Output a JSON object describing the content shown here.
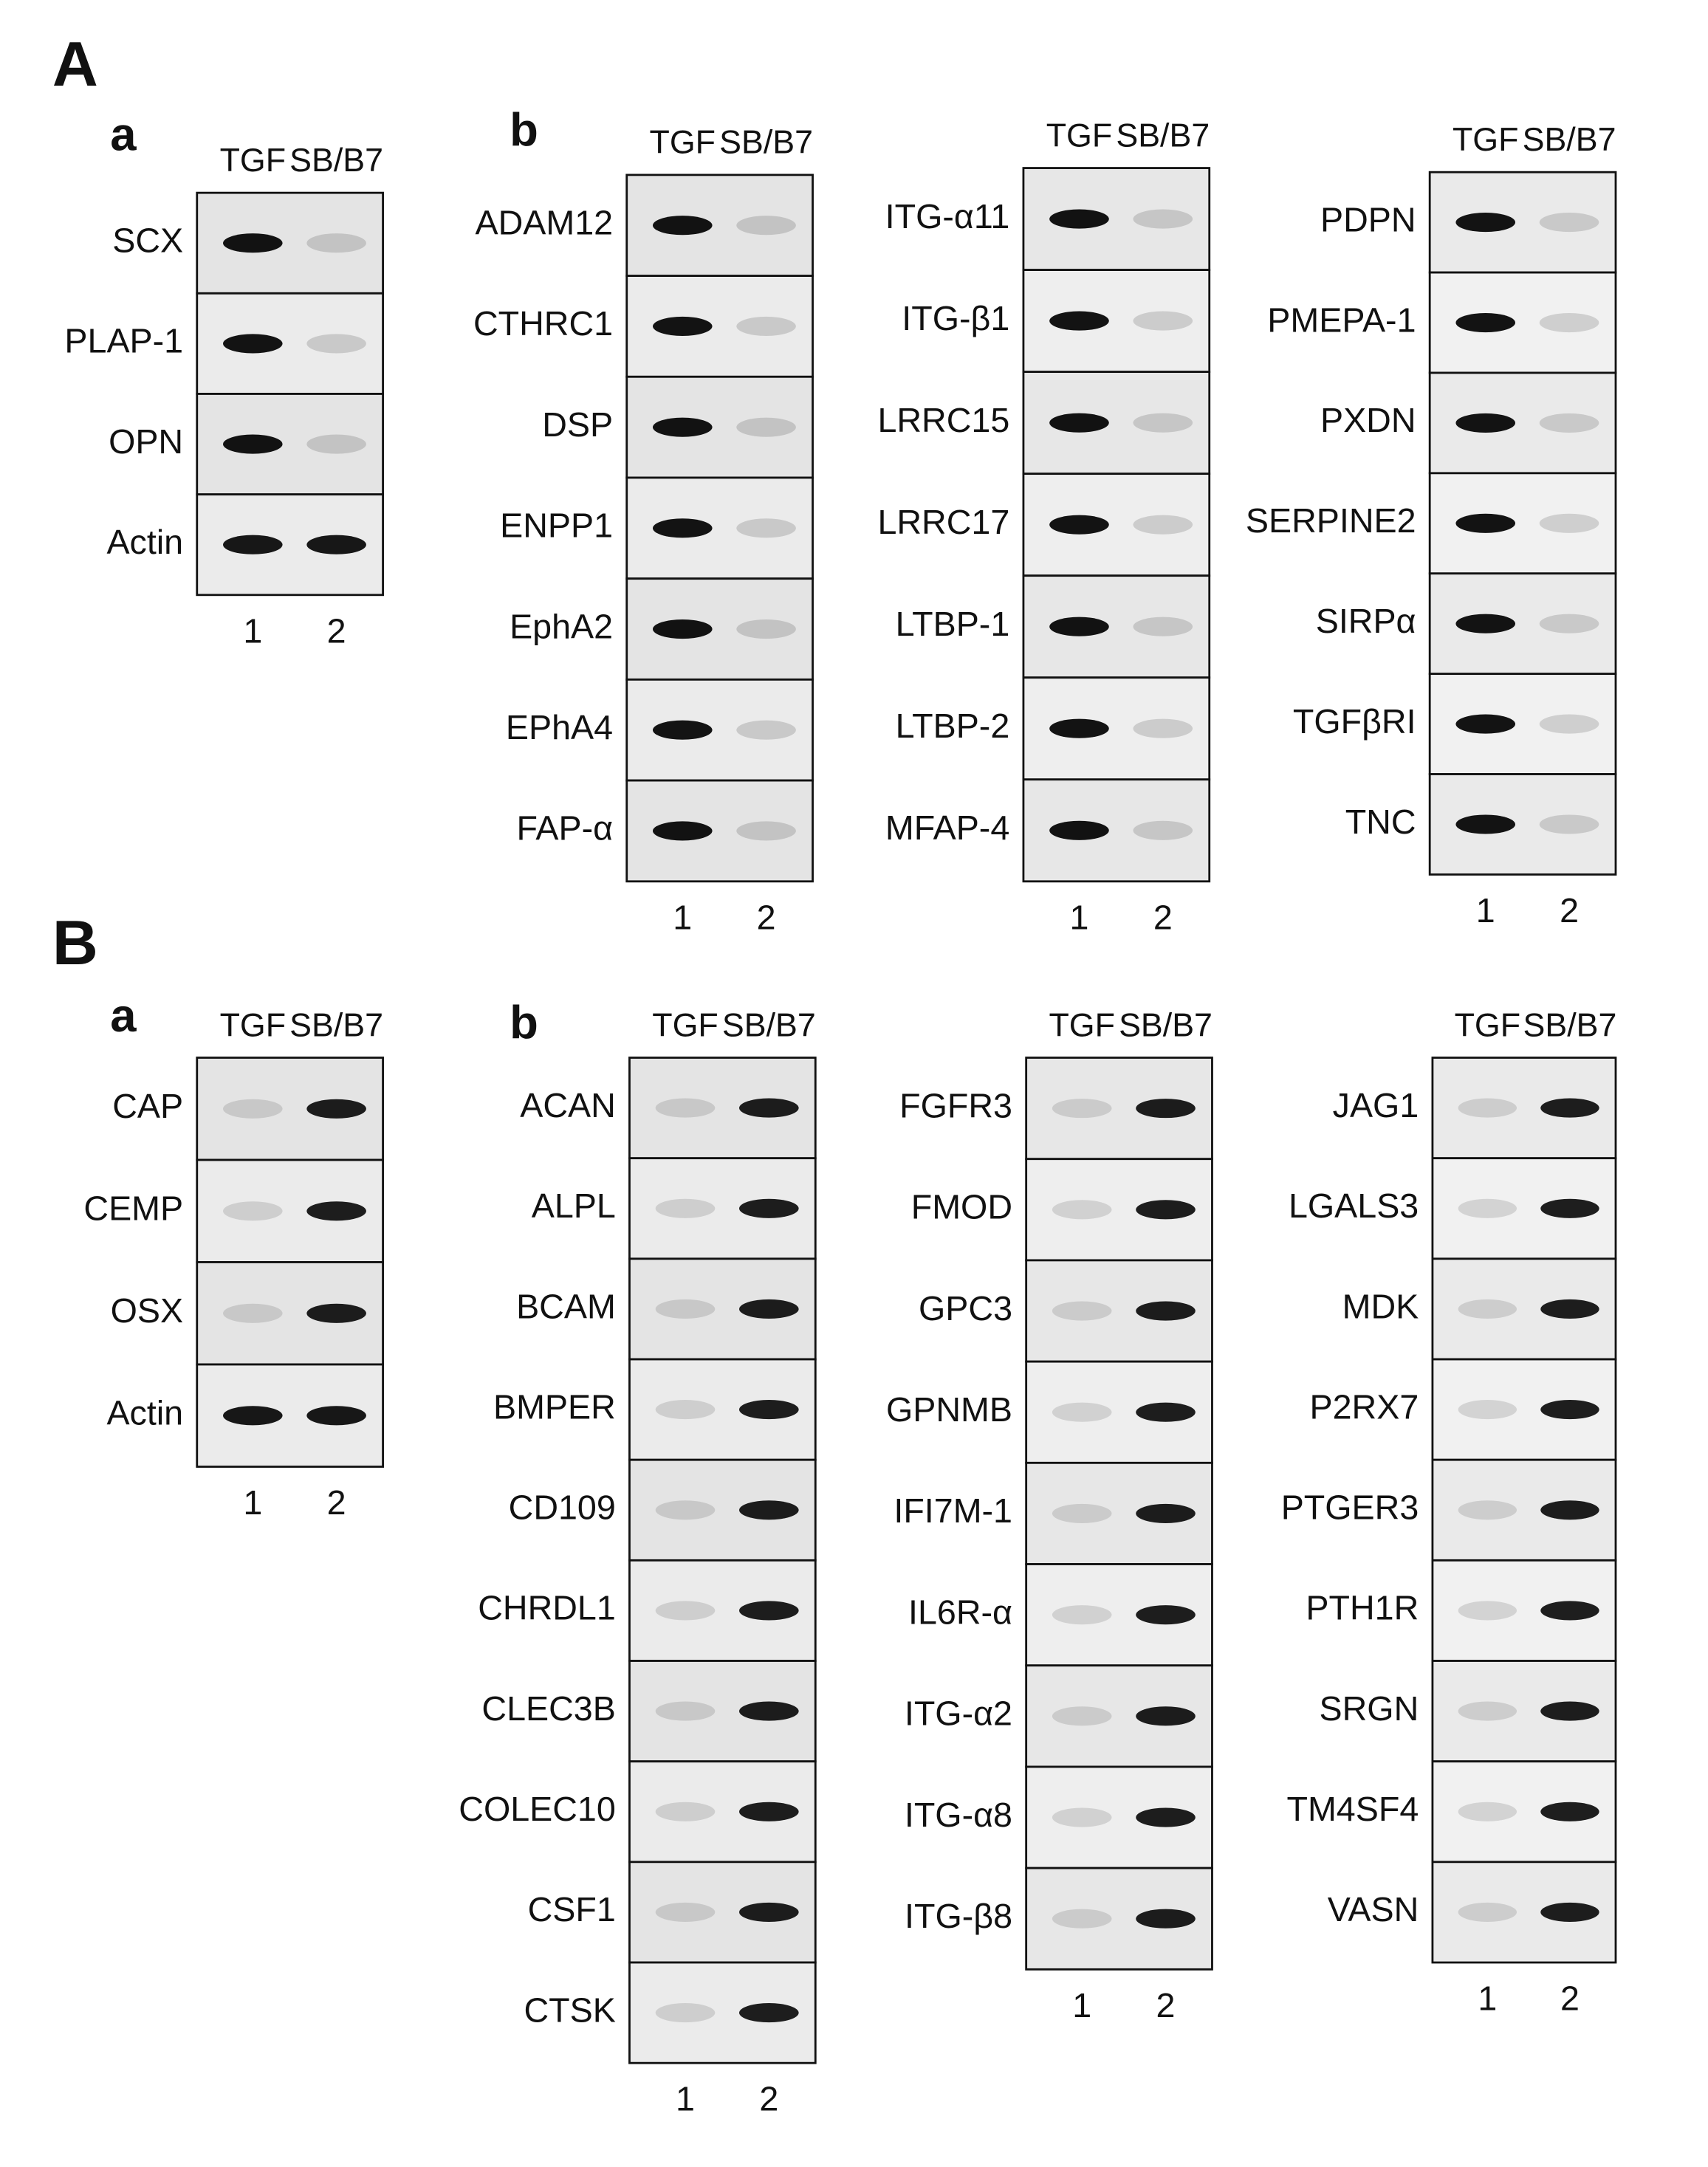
{
  "panels": [
    {
      "label": "A",
      "subpanels": [
        {
          "label": "a",
          "blots": [
            {
              "lanes": [
                "TGF",
                "SB/B7"
              ],
              "rows": [
                "SCX",
                "PLAP-1",
                "OPN",
                "Actin"
              ],
              "lane_numbers": [
                "1",
                "2"
              ]
            }
          ]
        },
        {
          "label": "b",
          "blots": [
            {
              "lanes": [
                "TGF",
                "SB/B7"
              ],
              "rows": [
                "ADAM12",
                "CTHRC1",
                "DSP",
                "ENPP1",
                "EphA2",
                "EPhA4",
                "FAP-α"
              ],
              "lane_numbers": [
                "1",
                "2"
              ]
            },
            {
              "lanes": [
                "TGF",
                "SB/B7"
              ],
              "rows": [
                "ITG-α11",
                "ITG-β1",
                "LRRC15",
                "LRRC17",
                "LTBP-1",
                "LTBP-2",
                "MFAP-4"
              ],
              "lane_numbers": [
                "1",
                "2"
              ]
            },
            {
              "lanes": [
                "TGF",
                "SB/B7"
              ],
              "rows": [
                "PDPN",
                "PMEPA-1",
                "PXDN",
                "SERPINE2",
                "SIRPα",
                "TGFβRI",
                "TNC"
              ],
              "lane_numbers": [
                "1",
                "2"
              ]
            }
          ]
        }
      ]
    },
    {
      "label": "B",
      "subpanels": [
        {
          "label": "a",
          "blots": [
            {
              "lanes": [
                "TGF",
                "SB/B7"
              ],
              "rows": [
                "CAP",
                "CEMP",
                "OSX",
                "Actin"
              ],
              "lane_numbers": [
                "1",
                "2"
              ]
            }
          ]
        },
        {
          "label": "b",
          "blots": [
            {
              "lanes": [
                "TGF",
                "SB/B7"
              ],
              "rows": [
                "ACAN",
                "ALPL",
                "BCAM",
                "BMPER",
                "CD109",
                "CHRDL1",
                "CLEC3B",
                "COLEC10",
                "CSF1",
                "CTSK"
              ],
              "lane_numbers": [
                "1",
                "2"
              ]
            },
            {
              "lanes": [
                "TGF",
                "SB/B7"
              ],
              "rows": [
                "FGFR3",
                "FMOD",
                "GPC3",
                "GPNMB",
                "IFI7M-1",
                "IL6R-α",
                "ITG-α2",
                "ITG-α8",
                "ITG-β8"
              ],
              "lane_numbers": [
                "1",
                "2"
              ]
            },
            {
              "lanes": [
                "TGF",
                "SB/B7"
              ],
              "rows": [
                "JAG1",
                "LGALS3",
                "MDK",
                "P2RX7",
                "PTGER3",
                "PTH1R",
                "SRGN",
                "TM4SF4",
                "VASN"
              ],
              "lane_numbers": [
                "1",
                "2"
              ]
            }
          ]
        }
      ]
    }
  ]
}
